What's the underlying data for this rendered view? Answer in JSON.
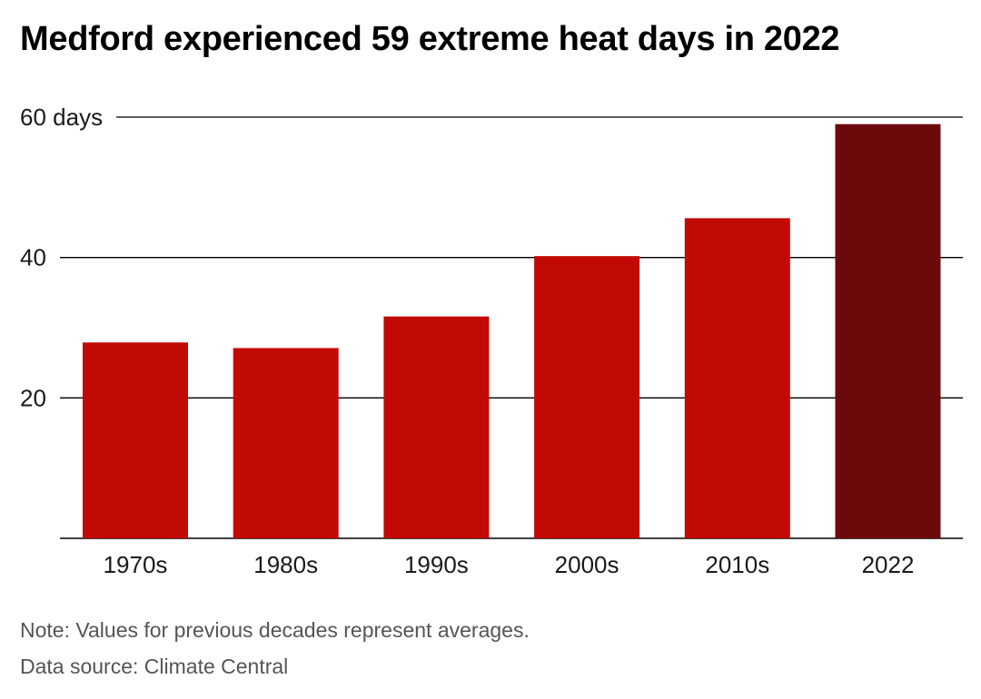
{
  "title": "Medford experienced 59 extreme heat days in 2022",
  "note": "Note: Values for previous decades represent averages.",
  "source": "Data source: Climate Central",
  "colors": {
    "bar": "#c20a05",
    "highlight": "#6b0a0b",
    "gridline": "#000000"
  },
  "chart_data": {
    "type": "bar",
    "categories": [
      "1970s",
      "1980s",
      "1990s",
      "2000s",
      "2010s",
      "2022"
    ],
    "values": [
      27.9,
      27.1,
      31.6,
      40.2,
      45.6,
      59
    ],
    "highlight_index": 5,
    "yticks": [
      20,
      40,
      60
    ],
    "ytick_labels": [
      "20",
      "40",
      "60 days"
    ],
    "ylim": [
      0,
      60
    ],
    "xlabel": "",
    "ylabel": "",
    "grid": true
  }
}
